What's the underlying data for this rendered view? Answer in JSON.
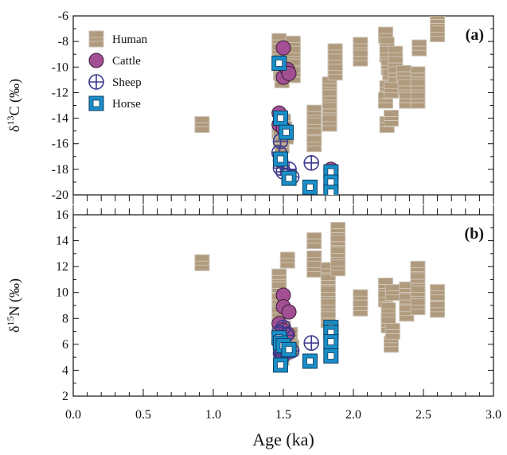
{
  "chart_data": [
    {
      "panel": "(a)",
      "type": "scatter",
      "ylabel_text": "δ13C (‰)",
      "ylim": [
        -20,
        -6
      ],
      "yticks": [
        -20,
        -18,
        -16,
        -14,
        -12,
        -10,
        -8,
        -6
      ],
      "legend_placement": "top-left",
      "series": [
        {
          "name": "Human",
          "marker": "square",
          "color": "#b09a7d",
          "points": [
            [
              0.92,
              -14.5
            ],
            [
              1.47,
              -8.0
            ],
            [
              1.47,
              -8.8
            ],
            [
              1.48,
              -9.6
            ],
            [
              1.48,
              -10.4
            ],
            [
              1.49,
              -11.0
            ],
            [
              1.47,
              -15.0
            ],
            [
              1.48,
              -15.6
            ],
            [
              1.49,
              -16.1
            ],
            [
              1.5,
              -14.3
            ],
            [
              1.51,
              -14.9
            ],
            [
              1.52,
              -15.4
            ],
            [
              1.52,
              -10.0
            ],
            [
              1.57,
              -8.2
            ],
            [
              1.57,
              -9.0
            ],
            [
              1.57,
              -10.0
            ],
            [
              1.57,
              -10.6
            ],
            [
              1.72,
              -13.6
            ],
            [
              1.72,
              -14.6
            ],
            [
              1.72,
              -15.4
            ],
            [
              1.72,
              -16.0
            ],
            [
              1.83,
              -11.4
            ],
            [
              1.83,
              -12.4
            ],
            [
              1.83,
              -13.4
            ],
            [
              1.83,
              -14.4
            ],
            [
              1.87,
              -8.8
            ],
            [
              1.87,
              -9.6
            ],
            [
              1.87,
              -10.4
            ],
            [
              2.05,
              -8.3
            ],
            [
              2.05,
              -9.3
            ],
            [
              2.23,
              -7.5
            ],
            [
              2.24,
              -8.3
            ],
            [
              2.24,
              -9.0
            ],
            [
              2.25,
              -10.0
            ],
            [
              2.26,
              -10.8
            ],
            [
              2.24,
              -11.7
            ],
            [
              2.23,
              -12.6
            ],
            [
              2.24,
              -14.5
            ],
            [
              2.27,
              -14.0
            ],
            [
              2.27,
              -11.8
            ],
            [
              2.3,
              -9.0
            ],
            [
              2.3,
              -9.8
            ],
            [
              2.3,
              -10.6
            ],
            [
              2.36,
              -10.5
            ],
            [
              2.37,
              -11.6
            ],
            [
              2.38,
              -12.6
            ],
            [
              2.46,
              -10.6
            ],
            [
              2.46,
              -11.6
            ],
            [
              2.46,
              -12.6
            ],
            [
              2.47,
              -8.5
            ],
            [
              2.6,
              -6.4
            ],
            [
              2.6,
              -7.4
            ]
          ]
        },
        {
          "name": "Cattle",
          "marker": "circle",
          "color": "#a24f94",
          "points": [
            [
              1.5,
              -8.5
            ],
            [
              1.5,
              -10.8
            ],
            [
              1.53,
              -10.2
            ],
            [
              1.54,
              -10.5
            ],
            [
              1.47,
              -13.6
            ],
            [
              1.47,
              -14.5
            ],
            [
              1.5,
              -14.8
            ],
            [
              1.52,
              -15.0
            ],
            [
              1.84,
              -18.0
            ]
          ]
        },
        {
          "name": "Sheep",
          "marker": "circle-plus",
          "color": "#3d3a8f",
          "points": [
            [
              1.48,
              -15.8
            ],
            [
              1.47,
              -16.7
            ],
            [
              1.48,
              -17.3
            ],
            [
              1.48,
              -17.9
            ],
            [
              1.5,
              -18.2
            ],
            [
              1.54,
              -18.0
            ],
            [
              1.56,
              -18.6
            ],
            [
              1.7,
              -17.5
            ]
          ]
        },
        {
          "name": "Horse",
          "marker": "square-open",
          "color": "#1a8ec8",
          "points": [
            [
              1.47,
              -9.7
            ],
            [
              1.48,
              -14.0
            ],
            [
              1.52,
              -15.1
            ],
            [
              1.48,
              -17.2
            ],
            [
              1.54,
              -18.7
            ],
            [
              1.69,
              -19.4
            ],
            [
              1.84,
              -18.2
            ],
            [
              1.84,
              -19.0
            ],
            [
              1.84,
              -19.8
            ]
          ]
        }
      ]
    },
    {
      "panel": "(b)",
      "type": "scatter",
      "ylabel_text": "δ15N (‰)",
      "ylim": [
        2,
        16
      ],
      "yticks": [
        2,
        4,
        6,
        8,
        10,
        12,
        14,
        16
      ],
      "series": [
        {
          "name": "Human",
          "marker": "square",
          "color": "#b09a7d",
          "points": [
            [
              0.92,
              12.3
            ],
            [
              1.47,
              11.2
            ],
            [
              1.47,
              10.2
            ],
            [
              1.47,
              9.3
            ],
            [
              1.47,
              8.3
            ],
            [
              1.47,
              7.4
            ],
            [
              1.48,
              6.5
            ],
            [
              1.48,
              5.7
            ],
            [
              1.49,
              5.0
            ],
            [
              1.5,
              7.2
            ],
            [
              1.5,
              6.2
            ],
            [
              1.51,
              5.4
            ],
            [
              1.53,
              12.5
            ],
            [
              1.55,
              6.7
            ],
            [
              1.56,
              5.7
            ],
            [
              1.72,
              14.0
            ],
            [
              1.72,
              12.6
            ],
            [
              1.72,
              11.8
            ],
            [
              1.82,
              11.7
            ],
            [
              1.82,
              10.8
            ],
            [
              1.82,
              9.9
            ],
            [
              1.82,
              8.9
            ],
            [
              1.82,
              7.9
            ],
            [
              1.89,
              14.8
            ],
            [
              1.89,
              13.8
            ],
            [
              1.89,
              12.9
            ],
            [
              1.89,
              11.9
            ],
            [
              2.05,
              9.6
            ],
            [
              2.05,
              8.8
            ],
            [
              2.23,
              10.5
            ],
            [
              2.23,
              9.5
            ],
            [
              2.25,
              8.6
            ],
            [
              2.25,
              7.5
            ],
            [
              2.27,
              6.0
            ],
            [
              2.28,
              7.0
            ],
            [
              2.28,
              10.0
            ],
            [
              2.38,
              10.2
            ],
            [
              2.38,
              9.3
            ],
            [
              2.38,
              8.4
            ],
            [
              2.46,
              11.8
            ],
            [
              2.46,
              10.9
            ],
            [
              2.46,
              9.9
            ],
            [
              2.46,
              8.9
            ],
            [
              2.6,
              10.0
            ],
            [
              2.6,
              8.7
            ]
          ]
        },
        {
          "name": "Cattle",
          "marker": "circle",
          "color": "#a24f94",
          "points": [
            [
              1.5,
              9.8
            ],
            [
              1.5,
              8.9
            ],
            [
              1.54,
              8.5
            ],
            [
              1.47,
              7.6
            ],
            [
              1.5,
              7.1
            ],
            [
              1.53,
              6.8
            ],
            [
              1.48,
              5.5
            ],
            [
              1.5,
              5.2
            ]
          ]
        },
        {
          "name": "Sheep",
          "marker": "circle-plus",
          "color": "#3d3a8f",
          "points": [
            [
              1.47,
              6.9
            ],
            [
              1.47,
              6.2
            ],
            [
              1.48,
              5.7
            ],
            [
              1.48,
              5.3
            ],
            [
              1.49,
              5.0
            ],
            [
              1.5,
              7.3
            ],
            [
              1.52,
              6.7
            ],
            [
              1.53,
              5.6
            ],
            [
              1.56,
              5.5
            ],
            [
              1.7,
              6.1
            ]
          ]
        },
        {
          "name": "Horse",
          "marker": "square-open",
          "color": "#1a8ec8",
          "points": [
            [
              1.47,
              6.5
            ],
            [
              1.48,
              6.1
            ],
            [
              1.48,
              4.4
            ],
            [
              1.5,
              5.9
            ],
            [
              1.54,
              5.6
            ],
            [
              1.69,
              4.7
            ],
            [
              1.84,
              7.3
            ],
            [
              1.84,
              6.9
            ],
            [
              1.84,
              6.2
            ],
            [
              1.84,
              5.1
            ]
          ]
        }
      ]
    }
  ],
  "x_axis": {
    "label": "Age (ka)",
    "xlim": [
      0,
      3
    ],
    "ticks": [
      "0.0",
      "0.5",
      "1.0",
      "1.5",
      "2.0",
      "2.5",
      "3.0"
    ]
  },
  "legend": {
    "items": [
      {
        "label": "Human",
        "marker": "square"
      },
      {
        "label": "Cattle",
        "marker": "circle"
      },
      {
        "label": "Sheep",
        "marker": "circle-plus"
      },
      {
        "label": "Horse",
        "marker": "square-open"
      }
    ]
  }
}
